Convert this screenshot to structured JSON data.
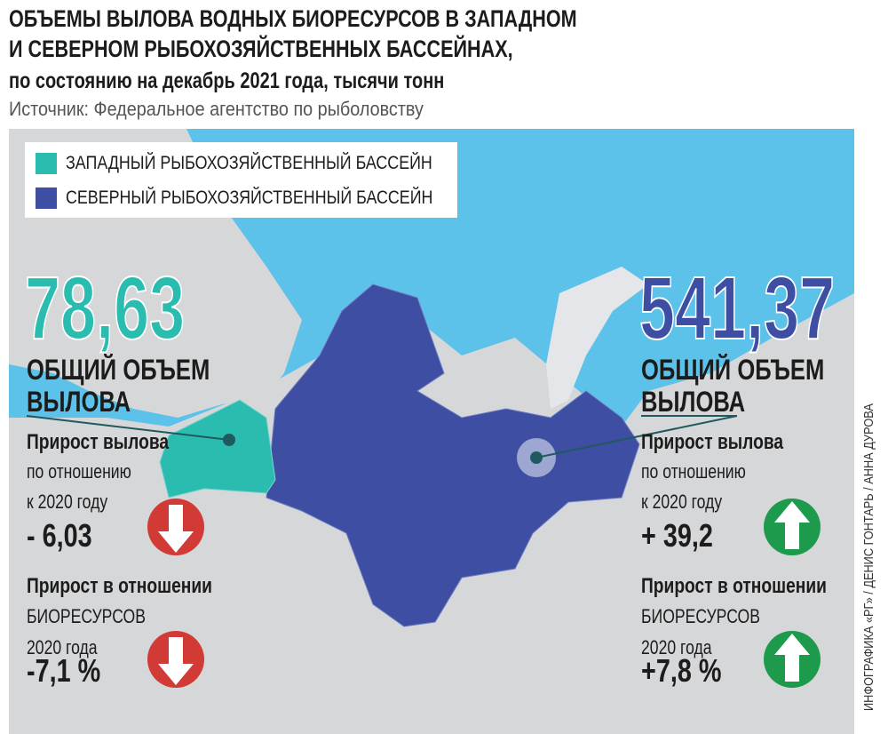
{
  "header": {
    "title_line1": "ОБЪЕМЫ ВЫЛОВА ВОДНЫХ БИОРЕСУРСОВ В ЗАПАДНОМ",
    "title_line2": "И СЕВЕРНОМ РЫБОХОЗЯЙСТВЕННЫХ БАССЕЙНАХ,",
    "subtitle": "по состоянию на декабрь 2021 года, тысячи тонн",
    "source": "Источник: Федеральное агентство по рыболовству"
  },
  "legend": [
    {
      "label": "ЗАПАДНЫЙ РЫБОХОЗЯЙСТВЕННЫЙ БАССЕЙН",
      "color": "#2bbcb0"
    },
    {
      "label": "СЕВЕРНЫЙ РЫБОХОЗЯЙСТВЕННЫЙ БАССЕЙН",
      "color": "#3d4ea3"
    }
  ],
  "basins": [
    {
      "total": "78,63",
      "total_label": [
        "ОБЩИЙ ОБЪЕМ",
        "ВЫЛОВА"
      ],
      "catch_growth_label": [
        "Прирост вылова",
        "по отношению",
        "к 2020 году"
      ],
      "catch_growth": "- 6,03",
      "resource_growth_label": [
        "Прирост в отношении",
        "БИОРЕСУРСОВ",
        "2020 года"
      ],
      "resource_growth": "-7,1 %"
    },
    {
      "total": "541,37",
      "total_label": [
        "ОБЩИЙ ОБЪЕМ",
        "ВЫЛОВА"
      ],
      "catch_growth_label": [
        "Прирост вылова",
        "по отношению",
        "к 2020 году"
      ],
      "catch_growth": "+ 39,2",
      "resource_growth_label": [
        "Прирост в отношении",
        "БИОРЕСУРСОВ",
        "2020 года"
      ],
      "resource_growth": "+7,8 %"
    }
  ],
  "credit": "ИНФОГРАФИКА «РГ» / ДЕНИС ГОНТАРЬ / АННА ДУРОВА"
}
